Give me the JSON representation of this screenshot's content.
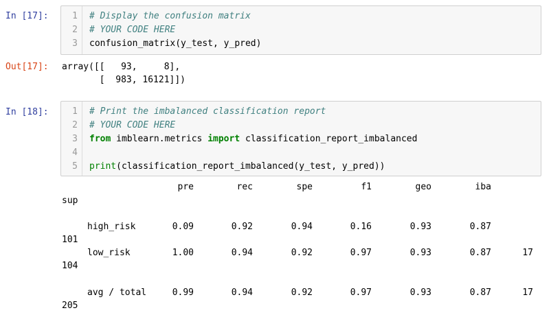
{
  "cell17": {
    "prompt_in": "In [17]:",
    "lines": [
      {
        "n": "1",
        "text": "# Display the confusion matrix",
        "type": "comment"
      },
      {
        "n": "2",
        "text": "# YOUR CODE HERE",
        "type": "comment"
      },
      {
        "n": "3",
        "text": "confusion_matrix(y_test, y_pred)",
        "type": "code"
      }
    ],
    "prompt_out": "Out[17]:",
    "output": [
      "array([[   93,     8],",
      "       [  983, 16121]])"
    ]
  },
  "cell18": {
    "prompt_in": "In [18]:",
    "lines": [
      {
        "n": "1",
        "text": "# Print the imbalanced classification report",
        "type": "comment"
      },
      {
        "n": "2",
        "text": "# YOUR CODE HERE",
        "type": "comment"
      },
      {
        "n": "3",
        "kw1": "from",
        "mid": " imblearn.metrics ",
        "kw2": "import",
        "rest": " classification_report_imbalanced"
      },
      {
        "n": "4",
        "text": ""
      },
      {
        "n": "5",
        "fn": "print",
        "rest": "(classification_report_imbalanced(y_test, y_pred))"
      }
    ]
  },
  "report": {
    "headers": [
      "pre",
      "rec",
      "spe",
      "f1",
      "geo",
      "iba"
    ],
    "sup_header": "sup",
    "rows": [
      {
        "label": "high_risk",
        "values": [
          "0.09",
          "0.92",
          "0.94",
          "0.16",
          "0.93",
          "0.87"
        ],
        "sup_a": "",
        "sup_b": "101"
      },
      {
        "label": "low_risk",
        "values": [
          "1.00",
          "0.94",
          "0.92",
          "0.97",
          "0.93",
          "0.87"
        ],
        "sup_a": "17",
        "sup_b": "104"
      },
      {
        "label": "avg / total",
        "values": [
          "0.99",
          "0.94",
          "0.92",
          "0.97",
          "0.93",
          "0.87"
        ],
        "sup_a": "17",
        "sup_b": "205"
      }
    ]
  }
}
